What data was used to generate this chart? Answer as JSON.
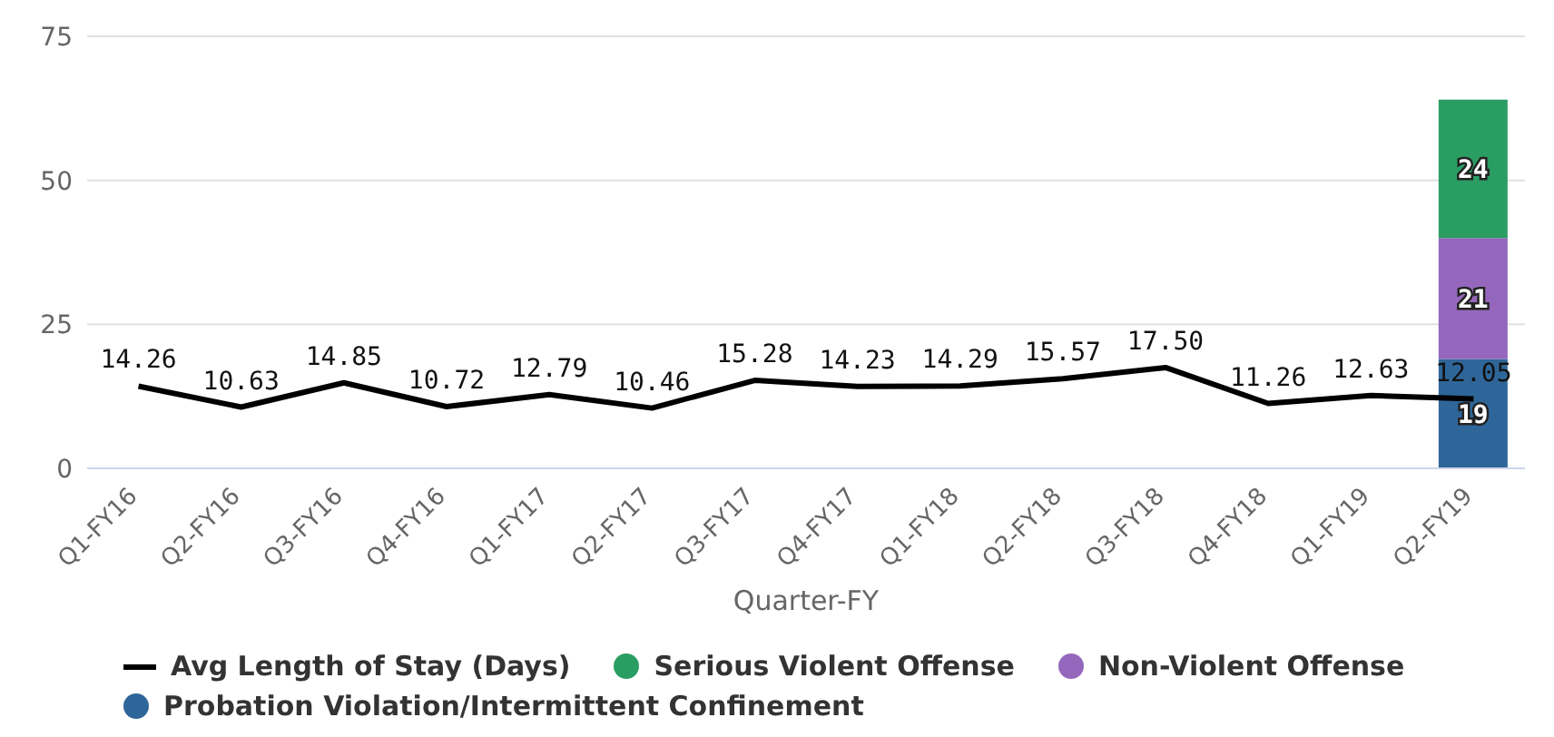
{
  "chart_data": {
    "type": "bar",
    "stacked": true,
    "xlabel": "Quarter-FY",
    "categories": [
      "Q1-FY16",
      "Q2-FY16",
      "Q3-FY16",
      "Q4-FY16",
      "Q1-FY17",
      "Q2-FY17",
      "Q3-FY17",
      "Q4-FY17",
      "Q1-FY18",
      "Q2-FY18",
      "Q3-FY18",
      "Q4-FY18",
      "Q1-FY19",
      "Q2-FY19"
    ],
    "series": [
      {
        "name": "Avg Length of Stay (Days)",
        "type": "line",
        "color": "#000000",
        "values": [
          14.26,
          10.63,
          14.85,
          10.72,
          12.79,
          10.46,
          15.28,
          14.23,
          14.29,
          15.57,
          17.5,
          11.26,
          12.63,
          12.05
        ],
        "value_labels": [
          "14.26",
          "10.63",
          "14.85",
          "10.72",
          "12.79",
          "10.46",
          "15.28",
          "14.23",
          "14.29",
          "15.57",
          "17.50",
          "11.26",
          "12.63",
          "12.05"
        ]
      },
      {
        "name": "Probation Violation/Intermittent Confinement",
        "color": "#2f6699",
        "values": [
          null,
          null,
          null,
          null,
          null,
          null,
          null,
          null,
          null,
          null,
          null,
          null,
          null,
          19
        ]
      },
      {
        "name": "Non-Violent Offense",
        "color": "#9467bd",
        "values": [
          null,
          null,
          null,
          null,
          null,
          null,
          null,
          null,
          null,
          null,
          null,
          null,
          null,
          21
        ]
      },
      {
        "name": "Serious Violent Offense",
        "color": "#2a9d63",
        "values": [
          null,
          null,
          null,
          null,
          null,
          null,
          null,
          null,
          null,
          null,
          null,
          null,
          null,
          24
        ]
      }
    ],
    "data_labels": true,
    "ylim": [
      0,
      75
    ],
    "yticks": [
      0,
      25,
      50,
      75
    ],
    "grid": "y",
    "legend": "bottom",
    "marker": "none"
  }
}
